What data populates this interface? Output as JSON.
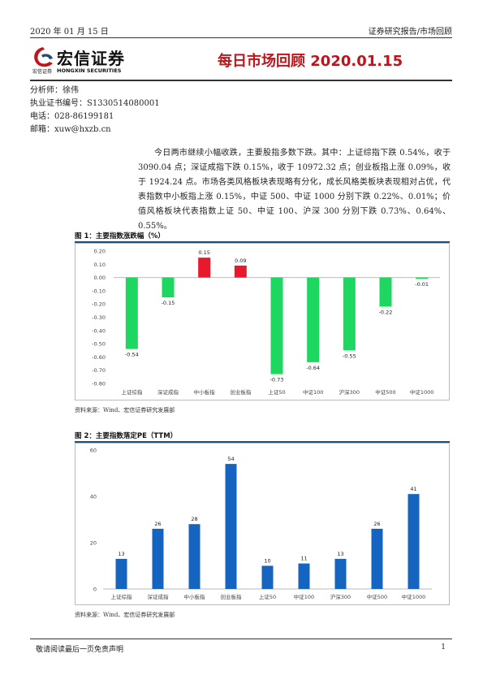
{
  "header": {
    "date": "2020 年 01 月 15 日",
    "report_type": "证券研究报告/市场回顾",
    "logo_cn": "宏信证券",
    "logo_small": "宏信证券",
    "logo_en": "HONGXIN SECURITIES",
    "title": "每日市场回顾 2020.01.15"
  },
  "author": {
    "analyst": "分析师：徐伟",
    "license": "执业证书编号：S1330514080001",
    "phone": "电话：028-86199181",
    "email": "邮箱：xuw@hxzb.cn"
  },
  "summary": "今日两市继续小幅收跌，主要股指多数下跌。其中：上证综指下跌 0.54%，收于 3090.04 点；深证成指下跌 0.15%，收于 10972.32 点；创业板指上涨 0.09%，收于 1924.24 点。市场各类风格板块表现略有分化，成长风格类板块表现相对占优，代表指数中小板指上涨 0.15%，中证 500、中证 1000 分别下跌 0.22%、0.01%；价值风格板块代表指数上证 50、中证 100、沪深 300 分别下跌 0.73%、0.64%、0.55%。",
  "chart1_title": "图 1：主要指数涨跌幅（%）",
  "chart2_title": "图 2：主要指数落定PE（TTM）",
  "source1": "资料来源：Wind、宏信证券研究发展部",
  "source2": "资料来源：Wind、宏信证券研究发展部",
  "footer": {
    "disclaimer": "敬请阅读最后一页免责声明",
    "page": "1"
  },
  "colors": {
    "up": "#e8192c",
    "down": "#1ed760",
    "pe_bar": "#1565c0",
    "title_red": "#c0141b"
  },
  "chart_data": [
    {
      "type": "bar",
      "title": "主要指数涨跌幅（%）",
      "categories": [
        "上证综指",
        "深证成指",
        "中小板指",
        "创业板指",
        "上证50",
        "中证100",
        "沪深300",
        "中证500",
        "中证1000"
      ],
      "values": [
        -0.54,
        -0.15,
        0.15,
        0.09,
        -0.73,
        -0.64,
        -0.55,
        -0.22,
        -0.01
      ],
      "value_labels": [
        "-0.54",
        "-0.15",
        "0.15",
        "0.09",
        "-0.73",
        "-0.64",
        "-0.55",
        "-0.22",
        "-0.01"
      ],
      "ylim": [
        -0.8,
        0.2
      ],
      "yticks": [
        "0.20",
        "0.10",
        "0.00",
        "-0.10",
        "-0.20",
        "-0.30",
        "-0.40",
        "-0.50",
        "-0.60",
        "-0.70",
        "-0.80"
      ],
      "grid": false
    },
    {
      "type": "bar",
      "title": "主要指数落定PE（TTM）",
      "categories": [
        "上证综指",
        "深证成指",
        "中小板指",
        "创业板指",
        "上证50",
        "中证100",
        "沪深300",
        "中证500",
        "中证1000"
      ],
      "values": [
        13,
        26,
        28,
        54,
        10,
        11,
        13,
        26,
        41
      ],
      "ylim": [
        0,
        60
      ],
      "yticks": [
        "60",
        "40",
        "20",
        "0"
      ],
      "grid": false
    }
  ]
}
